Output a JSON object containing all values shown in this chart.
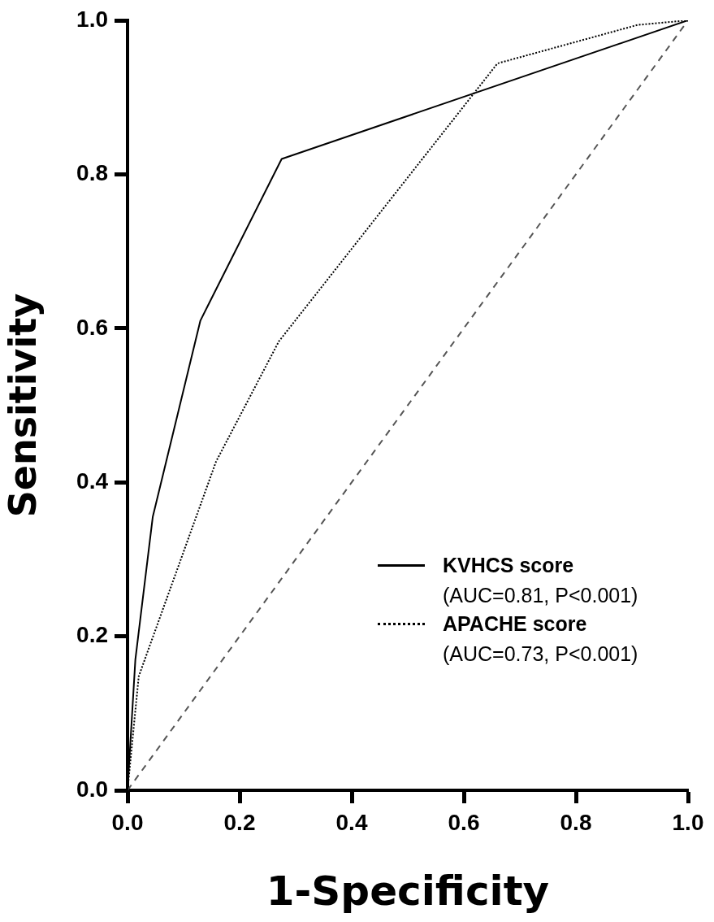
{
  "chart_data": {
    "type": "line",
    "xlabel": "1-Specificity",
    "ylabel": "Sensitivity",
    "xlim": [
      0,
      1
    ],
    "ylim": [
      0,
      1
    ],
    "xticks": [
      {
        "value": 0,
        "label": "0.0"
      },
      0.2,
      0.4,
      0.6,
      0.8,
      {
        "value": 1,
        "label": "1.0"
      }
    ],
    "yticks": [
      {
        "value": 0,
        "label": "0.0"
      },
      0.2,
      0.4,
      0.6,
      0.8,
      {
        "value": 1,
        "label": "1.0"
      }
    ],
    "grid": false,
    "legend": "bottom right",
    "marker": "none",
    "series": [
      {
        "name": "KVHCS score",
        "color": "#000000",
        "line_style": "solid",
        "x": [
          0,
          0.014,
          0.045,
          0.13,
          0.275,
          1
        ],
        "values": [
          0,
          0.17,
          0.355,
          0.61,
          0.82,
          1
        ]
      },
      {
        "name": "APACHE score",
        "color": "#000000",
        "line_style": "dotted",
        "x": [
          0,
          0.02,
          0.158,
          0.27,
          0.66,
          0.91,
          1
        ],
        "values": [
          0,
          0.148,
          0.427,
          0.583,
          0.944,
          0.994,
          1
        ]
      },
      {
        "color": "#555555",
        "line_style": "dashed",
        "x": [
          0,
          1
        ],
        "values": [
          0,
          1
        ]
      }
    ],
    "annotations": [
      "(AUC=0.81, P<0.001)",
      "(AUC=0.73, P<0.001)"
    ]
  }
}
